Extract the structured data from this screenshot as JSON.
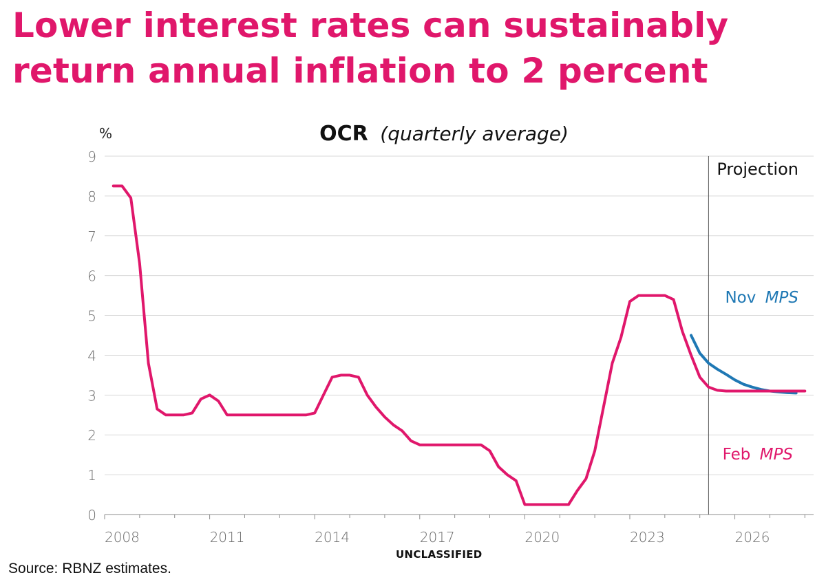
{
  "headline": "Lower interest rates can sustainably return annual inflation to 2 percent",
  "source": "Source: RBNZ estimates.",
  "classification": "UNCLASSIFIED",
  "colors": {
    "feb": "#e0176b",
    "nov": "#1f78b4",
    "headline": "#e0176b"
  },
  "chart_data": {
    "type": "line",
    "title": "OCR",
    "title_suffix": "(quarterly average)",
    "ylabel": "%",
    "ylim": [
      0,
      9
    ],
    "yticks": [
      0,
      1,
      2,
      3,
      4,
      5,
      6,
      7,
      8,
      9
    ],
    "xlim": [
      2008.0,
      2028.25
    ],
    "xticks": [
      "2008",
      "2011",
      "2014",
      "2017",
      "2020",
      "2023",
      "2026"
    ],
    "projection_start": 2025.25,
    "projection_label": "Projection",
    "grid": true,
    "series": [
      {
        "key": "feb",
        "name": "Feb",
        "name_italic": "MPS",
        "x": [
          2008.25,
          2008.5,
          2008.75,
          2009.0,
          2009.25,
          2009.5,
          2009.75,
          2010.0,
          2010.25,
          2010.5,
          2010.75,
          2011.0,
          2011.25,
          2011.5,
          2011.75,
          2012.0,
          2012.25,
          2012.5,
          2012.75,
          2013.0,
          2013.25,
          2013.5,
          2013.75,
          2014.0,
          2014.25,
          2014.5,
          2014.75,
          2015.0,
          2015.25,
          2015.5,
          2015.75,
          2016.0,
          2016.25,
          2016.5,
          2016.75,
          2017.0,
          2017.25,
          2017.5,
          2017.75,
          2018.0,
          2018.25,
          2018.5,
          2018.75,
          2019.0,
          2019.25,
          2019.5,
          2019.75,
          2020.0,
          2020.25,
          2020.5,
          2020.75,
          2021.0,
          2021.25,
          2021.5,
          2021.75,
          2022.0,
          2022.25,
          2022.5,
          2022.75,
          2023.0,
          2023.25,
          2023.5,
          2023.75,
          2024.0,
          2024.25,
          2024.5,
          2024.75,
          2025.0,
          2025.25,
          2025.5,
          2025.75,
          2026.0,
          2026.25,
          2026.5,
          2026.75,
          2027.0,
          2027.25,
          2027.5,
          2027.75,
          2028.0
        ],
        "values": [
          8.25,
          8.25,
          7.95,
          6.3,
          3.8,
          2.65,
          2.5,
          2.5,
          2.5,
          2.55,
          2.9,
          3.0,
          2.85,
          2.5,
          2.5,
          2.5,
          2.5,
          2.5,
          2.5,
          2.5,
          2.5,
          2.5,
          2.5,
          2.55,
          3.0,
          3.45,
          3.5,
          3.5,
          3.45,
          3.0,
          2.7,
          2.45,
          2.25,
          2.1,
          1.85,
          1.75,
          1.75,
          1.75,
          1.75,
          1.75,
          1.75,
          1.75,
          1.75,
          1.6,
          1.2,
          1.0,
          0.85,
          0.25,
          0.25,
          0.25,
          0.25,
          0.25,
          0.25,
          0.6,
          0.9,
          1.6,
          2.7,
          3.8,
          4.45,
          5.35,
          5.5,
          5.5,
          5.5,
          5.5,
          5.4,
          4.6,
          4.0,
          3.45,
          3.2,
          3.12,
          3.1,
          3.1,
          3.1,
          3.1,
          3.1,
          3.1,
          3.1,
          3.1,
          3.1,
          3.1
        ]
      },
      {
        "key": "nov",
        "name": "Nov",
        "name_italic": "MPS",
        "x": [
          2024.75,
          2025.0,
          2025.25,
          2025.5,
          2025.75,
          2026.0,
          2026.25,
          2026.5,
          2026.75,
          2027.0,
          2027.25,
          2027.5,
          2027.75
        ],
        "values": [
          4.5,
          4.05,
          3.8,
          3.65,
          3.52,
          3.38,
          3.27,
          3.2,
          3.14,
          3.1,
          3.08,
          3.06,
          3.05
        ]
      }
    ]
  }
}
